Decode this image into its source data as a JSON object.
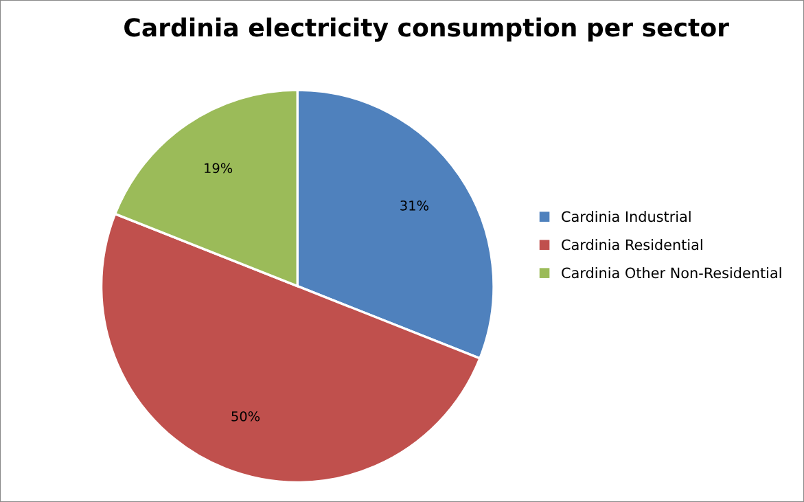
{
  "chart_data": {
    "type": "pie",
    "title": "Cardinia electricity consumption per sector",
    "categories": [
      "Cardinia Industrial",
      "Cardinia Residential",
      "Cardinia Other Non-Residential"
    ],
    "values": [
      31,
      50,
      19
    ],
    "colors": [
      "#4f81bd",
      "#c0504d",
      "#9bbb59"
    ],
    "value_labels": [
      "31%",
      "50%",
      "19%"
    ],
    "legend": "right"
  }
}
